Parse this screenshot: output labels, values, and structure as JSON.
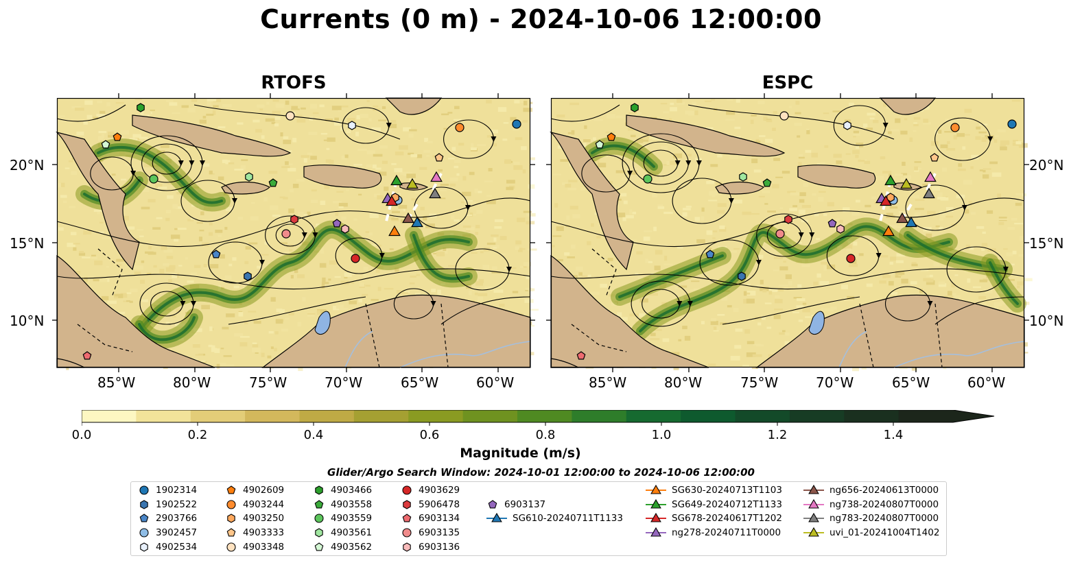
{
  "title": "Currents (0 m) - 2024-10-06 12:00:00",
  "panels": [
    {
      "id": "left",
      "title": "RTOFS"
    },
    {
      "id": "right",
      "title": "ESPC"
    }
  ],
  "axes": {
    "lon_ticks": [
      "85°W",
      "80°W",
      "75°W",
      "70°W",
      "65°W",
      "60°W"
    ],
    "lat_ticks": [
      "20°N",
      "15°N",
      "10°N"
    ]
  },
  "colorbar": {
    "title": "Magnitude (m/s)",
    "ticks": [
      "0.0",
      "0.2",
      "0.4",
      "0.6",
      "0.8",
      "1.0",
      "1.2",
      "1.4"
    ],
    "colors": [
      "#fdf7c2",
      "#f2e39a",
      "#e3cd78",
      "#d3b85c",
      "#bfaa45",
      "#a5a032",
      "#8a9b22",
      "#6f9220",
      "#4f8a22",
      "#2e7d2a",
      "#166a30",
      "#0e5a2e",
      "#134a29",
      "#173c24",
      "#1a301f",
      "#1c261b"
    ],
    "extend": "max"
  },
  "search_window": "Glider/Argo Search Window: 2024-10-01 12:00:00 to 2024-10-06 12:00:00",
  "legend": {
    "columns": [
      [
        {
          "label": "1902314",
          "marker": "circle",
          "color": "#1f77b4"
        },
        {
          "label": "1902522",
          "marker": "hexagon",
          "color": "#3a75b0"
        },
        {
          "label": "2903766",
          "marker": "pentagon",
          "color": "#4a86c8"
        },
        {
          "label": "3902457",
          "marker": "circle",
          "color": "#8fbde6"
        },
        {
          "label": "4902534",
          "marker": "hexagon",
          "color": "#e8f0fb"
        }
      ],
      [
        {
          "label": "4902609",
          "marker": "pentagon",
          "color": "#ff7f0e"
        },
        {
          "label": "4903244",
          "marker": "circle",
          "color": "#ff8c2e"
        },
        {
          "label": "4903250",
          "marker": "hexagon",
          "color": "#ffa95e"
        },
        {
          "label": "4903333",
          "marker": "pentagon",
          "color": "#ffc68a"
        },
        {
          "label": "4903348",
          "marker": "circle",
          "color": "#ffe2c0"
        }
      ],
      [
        {
          "label": "4903466",
          "marker": "hexagon",
          "color": "#2ca02c"
        },
        {
          "label": "4903558",
          "marker": "pentagon",
          "color": "#3bab3b"
        },
        {
          "label": "4903559",
          "marker": "circle",
          "color": "#5cc55c"
        },
        {
          "label": "4903561",
          "marker": "hexagon",
          "color": "#a0e6a0"
        },
        {
          "label": "4903562",
          "marker": "pentagon",
          "color": "#d4f7d4"
        }
      ],
      [
        {
          "label": "4903629",
          "marker": "circle",
          "color": "#d62728"
        },
        {
          "label": "5906478",
          "marker": "hexagon",
          "color": "#dc3c3f"
        },
        {
          "label": "6903134",
          "marker": "pentagon",
          "color": "#ee6b70"
        },
        {
          "label": "6903135",
          "marker": "circle",
          "color": "#f08b8b"
        },
        {
          "label": "6903136",
          "marker": "hexagon",
          "color": "#f7baba"
        }
      ],
      [
        {
          "label": "6903137",
          "marker": "pentagon",
          "color": "#9467bd"
        },
        {
          "label": "SG610-20240711T1133",
          "marker": "triangle-line",
          "color": "#1f77b4"
        }
      ],
      [
        {
          "label": "SG630-20240713T1103",
          "marker": "triangle-line",
          "color": "#ff7f0e"
        },
        {
          "label": "SG649-20240712T1133",
          "marker": "triangle-line",
          "color": "#2ca02c"
        },
        {
          "label": "SG678-20240617T1202",
          "marker": "triangle-line",
          "color": "#d62728"
        },
        {
          "label": "ng278-20240711T0000",
          "marker": "triangle-line",
          "color": "#9467bd"
        }
      ],
      [
        {
          "label": "ng656-20240613T0000",
          "marker": "triangle-line",
          "color": "#8c564b"
        },
        {
          "label": "ng738-20240807T0000",
          "marker": "triangle-line",
          "color": "#e377c2"
        },
        {
          "label": "ng783-20240807T0000",
          "marker": "triangle-line",
          "color": "#7f7f7f"
        },
        {
          "label": "uvi_01-20241004T1402",
          "marker": "triangle-line",
          "color": "#bcbd22"
        }
      ]
    ]
  },
  "map_colors": {
    "land": "#d2b48c",
    "water_ocean": "#efe09a",
    "lake": "#8fb4e3",
    "river": "#a5bfdd"
  }
}
